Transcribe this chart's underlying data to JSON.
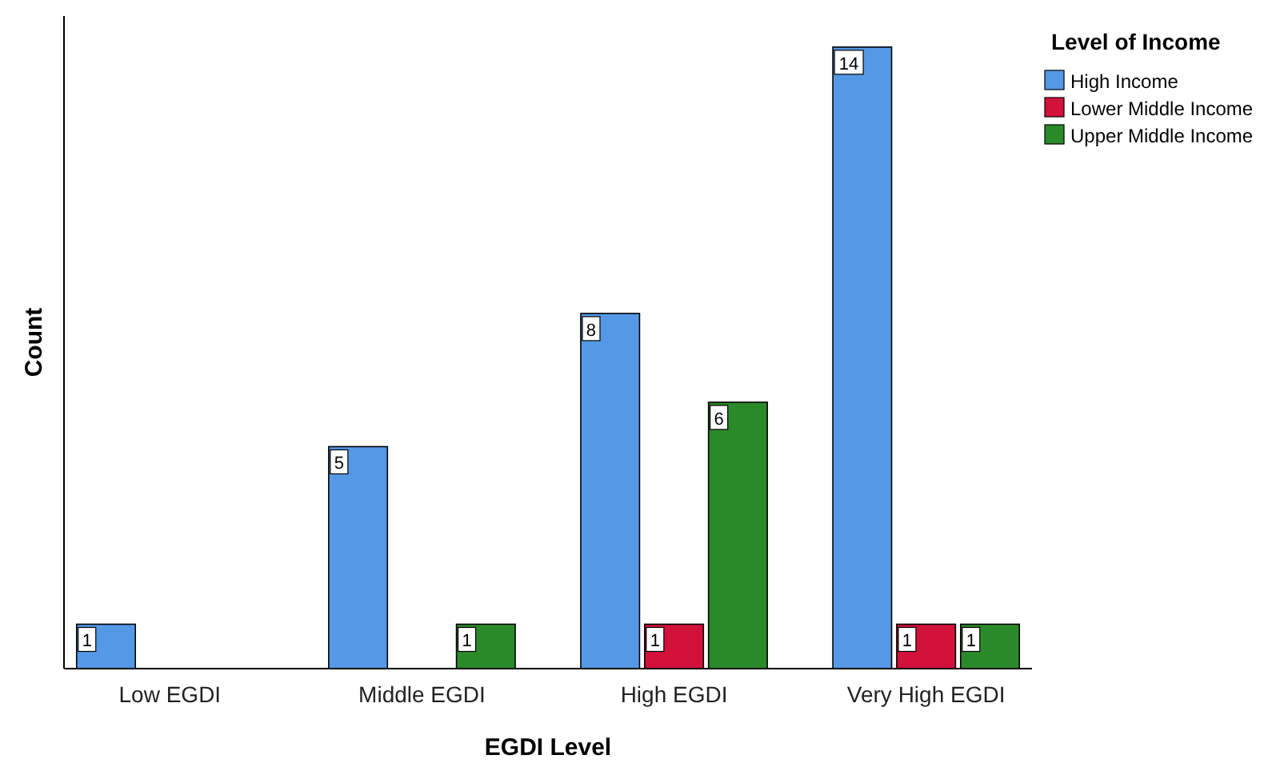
{
  "chart_data": {
    "type": "bar",
    "xlabel": "EGDI Level",
    "ylabel": "Count",
    "legend_title": "Level of Income",
    "categories": [
      "Low EGDI",
      "Middle EGDI",
      "High EGDI",
      "Very High EGDI"
    ],
    "series": [
      {
        "name": "High Income",
        "color": "#5599e6",
        "values": [
          1,
          5,
          8,
          14
        ]
      },
      {
        "name": "Lower Middle Income",
        "color": "#d2123a",
        "values": [
          null,
          null,
          1,
          1
        ]
      },
      {
        "name": "Upper Middle Income",
        "color": "#2a8a2a",
        "values": [
          null,
          1,
          6,
          1
        ]
      }
    ],
    "ylim": [
      0,
      14.7
    ],
    "tick_labels": "x",
    "grid": false,
    "legend": "top right",
    "data_labels": true
  }
}
